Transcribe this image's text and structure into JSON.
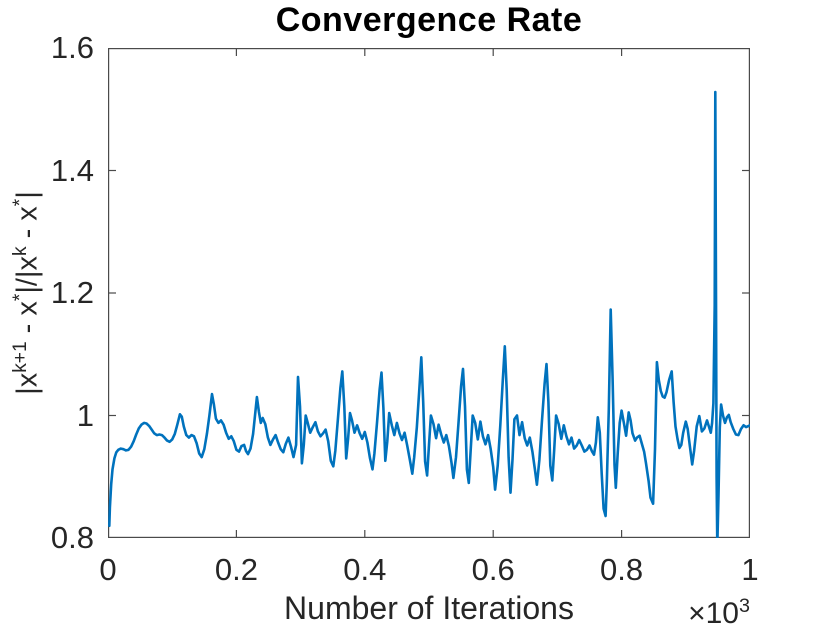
{
  "chart_data": {
    "type": "line",
    "title": "Convergence Rate",
    "xlabel": "Number of Iterations",
    "x_multiplier": {
      "base": "×10",
      "exp": "3"
    },
    "ylabel": "|x^(k+1) - x^*|/|x^k - x^*|",
    "ylabel_rich": {
      "p1": "|x",
      "s1": "k+1",
      "p2": " - x",
      "s2": "*",
      "p3": "|/|x",
      "s3": "k",
      "p4": " - x",
      "s4": "*",
      "p5": "|"
    },
    "xlim": [
      0,
      1000
    ],
    "ylim": [
      0.8,
      1.6
    ],
    "xticks": {
      "values": [
        0,
        200,
        400,
        600,
        800,
        1000
      ],
      "labels": [
        "0",
        "0.2",
        "0.4",
        "0.6",
        "0.8",
        "1"
      ]
    },
    "yticks": {
      "values": [
        0.8,
        1.0,
        1.2,
        1.4,
        1.6
      ],
      "labels": [
        "0.8",
        "1",
        "1.2",
        "1.4",
        "1.6"
      ]
    },
    "grid": false,
    "legend": null,
    "line_color": "#0072BD",
    "line_width": 2.6,
    "axes_color": "#4a4a4a",
    "text_color": "#262626",
    "points": [
      [
        2,
        0.82
      ],
      [
        3,
        0.85
      ],
      [
        5,
        0.888
      ],
      [
        7,
        0.912
      ],
      [
        10,
        0.93
      ],
      [
        13,
        0.94
      ],
      [
        16,
        0.944
      ],
      [
        20,
        0.946
      ],
      [
        24,
        0.945
      ],
      [
        28,
        0.943
      ],
      [
        32,
        0.944
      ],
      [
        36,
        0.949
      ],
      [
        40,
        0.958
      ],
      [
        44,
        0.969
      ],
      [
        48,
        0.979
      ],
      [
        52,
        0.985
      ],
      [
        56,
        0.988
      ],
      [
        60,
        0.987
      ],
      [
        64,
        0.983
      ],
      [
        68,
        0.977
      ],
      [
        72,
        0.971
      ],
      [
        76,
        0.968
      ],
      [
        80,
        0.969
      ],
      [
        84,
        0.968
      ],
      [
        88,
        0.964
      ],
      [
        92,
        0.959
      ],
      [
        96,
        0.957
      ],
      [
        100,
        0.961
      ],
      [
        104,
        0.97
      ],
      [
        108,
        0.985
      ],
      [
        112,
        1.002
      ],
      [
        115,
        0.998
      ],
      [
        118,
        0.982
      ],
      [
        122,
        0.968
      ],
      [
        126,
        0.964
      ],
      [
        130,
        0.968
      ],
      [
        134,
        0.966
      ],
      [
        138,
        0.955
      ],
      [
        142,
        0.938
      ],
      [
        146,
        0.932
      ],
      [
        150,
        0.945
      ],
      [
        154,
        0.97
      ],
      [
        158,
        1.0
      ],
      [
        162,
        1.035
      ],
      [
        165,
        1.018
      ],
      [
        168,
        0.995
      ],
      [
        172,
        0.988
      ],
      [
        176,
        0.992
      ],
      [
        180,
        0.985
      ],
      [
        184,
        0.972
      ],
      [
        188,
        0.962
      ],
      [
        192,
        0.966
      ],
      [
        196,
        0.958
      ],
      [
        200,
        0.944
      ],
      [
        204,
        0.941
      ],
      [
        208,
        0.95
      ],
      [
        212,
        0.952
      ],
      [
        215,
        0.942
      ],
      [
        218,
        0.937
      ],
      [
        222,
        0.946
      ],
      [
        226,
        0.97
      ],
      [
        229,
        1.0
      ],
      [
        232,
        1.03
      ],
      [
        235,
        1.006
      ],
      [
        238,
        0.988
      ],
      [
        241,
        0.996
      ],
      [
        245,
        0.986
      ],
      [
        249,
        0.964
      ],
      [
        253,
        0.952
      ],
      [
        257,
        0.961
      ],
      [
        261,
        0.968
      ],
      [
        265,
        0.956
      ],
      [
        269,
        0.945
      ],
      [
        273,
        0.94
      ],
      [
        277,
        0.954
      ],
      [
        281,
        0.964
      ],
      [
        285,
        0.949
      ],
      [
        289,
        0.932
      ],
      [
        293,
        0.952
      ],
      [
        296,
        1.063
      ],
      [
        299,
        1.015
      ],
      [
        302,
        0.922
      ],
      [
        305,
        0.952
      ],
      [
        308,
        1.0
      ],
      [
        311,
        0.988
      ],
      [
        315,
        0.972
      ],
      [
        319,
        0.981
      ],
      [
        323,
        0.989
      ],
      [
        327,
        0.974
      ],
      [
        331,
        0.966
      ],
      [
        335,
        0.971
      ],
      [
        339,
        0.977
      ],
      [
        343,
        0.958
      ],
      [
        347,
        0.926
      ],
      [
        351,
        0.917
      ],
      [
        354,
        0.942
      ],
      [
        358,
        0.992
      ],
      [
        362,
        1.045
      ],
      [
        365,
        1.072
      ],
      [
        368,
        1.015
      ],
      [
        371,
        0.93
      ],
      [
        374,
        0.962
      ],
      [
        377,
        1.004
      ],
      [
        380,
        0.992
      ],
      [
        384,
        0.972
      ],
      [
        388,
        0.984
      ],
      [
        392,
        0.971
      ],
      [
        396,
        0.962
      ],
      [
        400,
        0.973
      ],
      [
        404,
        0.956
      ],
      [
        408,
        0.931
      ],
      [
        412,
        0.912
      ],
      [
        415,
        0.938
      ],
      [
        419,
        0.988
      ],
      [
        423,
        1.042
      ],
      [
        426,
        1.07
      ],
      [
        429,
        1.012
      ],
      [
        432,
        0.926
      ],
      [
        435,
        0.958
      ],
      [
        438,
        1.004
      ],
      [
        442,
        0.984
      ],
      [
        446,
        0.968
      ],
      [
        450,
        0.988
      ],
      [
        454,
        0.971
      ],
      [
        458,
        0.96
      ],
      [
        462,
        0.972
      ],
      [
        466,
        0.951
      ],
      [
        470,
        0.929
      ],
      [
        474,
        0.905
      ],
      [
        477,
        0.932
      ],
      [
        481,
        0.98
      ],
      [
        485,
        1.045
      ],
      [
        488,
        1.095
      ],
      [
        491,
        1.022
      ],
      [
        494,
        0.925
      ],
      [
        497,
        0.902
      ],
      [
        500,
        0.952
      ],
      [
        503,
        1.0
      ],
      [
        507,
        0.986
      ],
      [
        511,
        0.963
      ],
      [
        515,
        0.985
      ],
      [
        519,
        0.969
      ],
      [
        523,
        0.956
      ],
      [
        527,
        0.968
      ],
      [
        531,
        0.95
      ],
      [
        535,
        0.923
      ],
      [
        538,
        0.898
      ],
      [
        542,
        0.932
      ],
      [
        546,
        0.988
      ],
      [
        550,
        1.048
      ],
      [
        553,
        1.076
      ],
      [
        556,
        1.015
      ],
      [
        559,
        0.912
      ],
      [
        562,
        0.89
      ],
      [
        565,
        0.944
      ],
      [
        568,
        1.0
      ],
      [
        572,
        0.988
      ],
      [
        576,
        0.961
      ],
      [
        580,
        0.99
      ],
      [
        584,
        0.966
      ],
      [
        588,
        0.953
      ],
      [
        592,
        0.968
      ],
      [
        596,
        0.946
      ],
      [
        600,
        0.916
      ],
      [
        603,
        0.879
      ],
      [
        607,
        0.918
      ],
      [
        611,
        0.984
      ],
      [
        615,
        1.058
      ],
      [
        618,
        1.113
      ],
      [
        621,
        1.042
      ],
      [
        624,
        0.932
      ],
      [
        627,
        0.874
      ],
      [
        630,
        0.928
      ],
      [
        633,
        0.994
      ],
      [
        637,
        1.0
      ],
      [
        641,
        0.968
      ],
      [
        645,
        0.989
      ],
      [
        649,
        0.963
      ],
      [
        653,
        0.951
      ],
      [
        657,
        0.964
      ],
      [
        661,
        0.941
      ],
      [
        665,
        0.912
      ],
      [
        668,
        0.887
      ],
      [
        672,
        0.928
      ],
      [
        676,
        0.992
      ],
      [
        680,
        1.052
      ],
      [
        683,
        1.084
      ],
      [
        686,
        1.022
      ],
      [
        689,
        0.918
      ],
      [
        692,
        0.894
      ],
      [
        695,
        0.944
      ],
      [
        698,
        1.0
      ],
      [
        702,
        0.986
      ],
      [
        706,
        0.962
      ],
      [
        710,
        0.984
      ],
      [
        714,
        0.966
      ],
      [
        718,
        0.953
      ],
      [
        722,
        0.964
      ],
      [
        726,
        0.946
      ],
      [
        730,
        0.951
      ],
      [
        734,
        0.96
      ],
      [
        738,
        0.951
      ],
      [
        742,
        0.941
      ],
      [
        746,
        0.944
      ],
      [
        750,
        0.951
      ],
      [
        754,
        0.941
      ],
      [
        757,
        0.936
      ],
      [
        760,
        0.956
      ],
      [
        763,
        0.997
      ],
      [
        766,
        0.972
      ],
      [
        769,
        0.905
      ],
      [
        772,
        0.848
      ],
      [
        775,
        0.836
      ],
      [
        777,
        0.89
      ],
      [
        780,
        1.01
      ],
      [
        783,
        1.173
      ],
      [
        786,
        1.06
      ],
      [
        789,
        0.92
      ],
      [
        791,
        0.882
      ],
      [
        794,
        0.938
      ],
      [
        797,
        0.988
      ],
      [
        800,
        1.008
      ],
      [
        804,
        0.985
      ],
      [
        807,
        0.967
      ],
      [
        811,
        1.005
      ],
      [
        814,
        0.992
      ],
      [
        817,
        0.971
      ],
      [
        821,
        0.959
      ],
      [
        824,
        0.964
      ],
      [
        828,
        0.967
      ],
      [
        831,
        0.956
      ],
      [
        835,
        0.941
      ],
      [
        838,
        0.922
      ],
      [
        842,
        0.893
      ],
      [
        845,
        0.866
      ],
      [
        849,
        0.856
      ],
      [
        852,
        0.945
      ],
      [
        855,
        1.087
      ],
      [
        858,
        1.058
      ],
      [
        861,
        1.04
      ],
      [
        864,
        1.031
      ],
      [
        867,
        1.029
      ],
      [
        870,
        1.038
      ],
      [
        874,
        1.058
      ],
      [
        878,
        1.072
      ],
      [
        881,
        1.022
      ],
      [
        884,
        0.982
      ],
      [
        887,
        0.962
      ],
      [
        890,
        0.947
      ],
      [
        893,
        0.952
      ],
      [
        896,
        0.972
      ],
      [
        900,
        0.99
      ],
      [
        903,
        0.978
      ],
      [
        906,
        0.952
      ],
      [
        910,
        0.92
      ],
      [
        913,
        0.942
      ],
      [
        917,
        0.982
      ],
      [
        921,
        0.999
      ],
      [
        925,
        0.974
      ],
      [
        929,
        0.979
      ],
      [
        933,
        0.992
      ],
      [
        936,
        0.982
      ],
      [
        939,
        0.972
      ],
      [
        941,
        0.988
      ],
      [
        943,
        1.02
      ],
      [
        945,
        1.18
      ],
      [
        946,
        1.528
      ],
      [
        947,
        1.2
      ],
      [
        948,
        0.9
      ],
      [
        949,
        0.787
      ],
      [
        951,
        0.87
      ],
      [
        953,
        0.98
      ],
      [
        955,
        1.018
      ],
      [
        958,
        1.0
      ],
      [
        961,
        0.988
      ],
      [
        964,
        0.997
      ],
      [
        967,
        1.001
      ],
      [
        970,
        0.989
      ],
      [
        974,
        0.978
      ],
      [
        978,
        0.969
      ],
      [
        982,
        0.968
      ],
      [
        986,
        0.978
      ],
      [
        990,
        0.984
      ],
      [
        994,
        0.981
      ],
      [
        1000,
        0.984
      ]
    ]
  }
}
